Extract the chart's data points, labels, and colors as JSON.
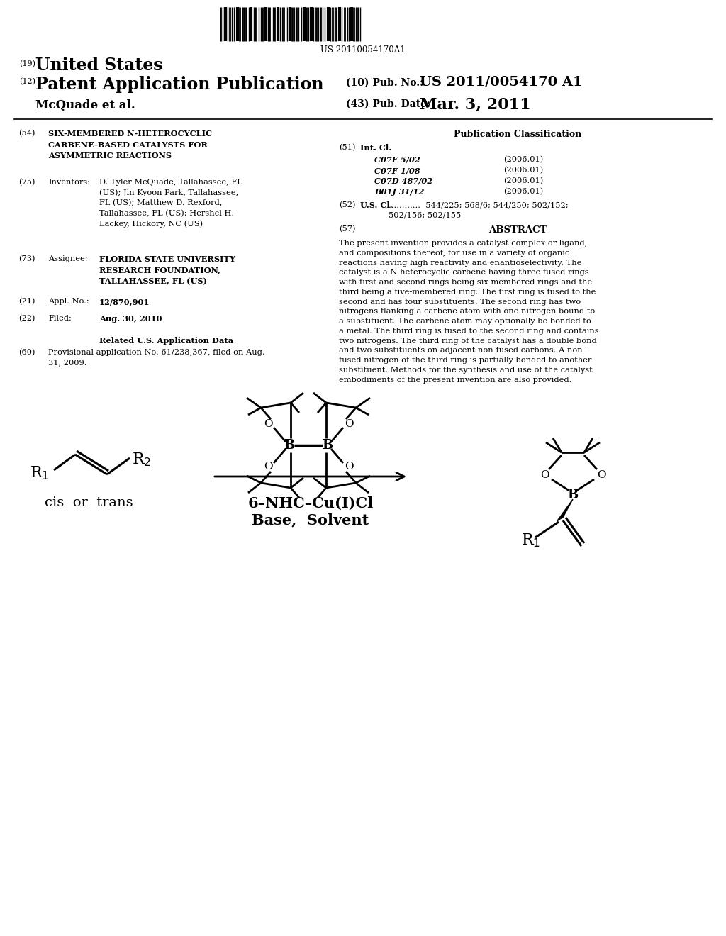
{
  "background_color": "#ffffff",
  "barcode_text": "US 20110054170A1",
  "header_19_text": "United States",
  "header_12_text": "Patent Application Publication",
  "header_10_label": "(10) Pub. No.:",
  "header_10_value": "US 2011/0054170 A1",
  "header_43_label": "(43) Pub. Date:",
  "header_43_value": "Mar. 3, 2011",
  "authors_line": "McQuade et al.",
  "field54_text": "SIX-MEMBERED N-HETEROCYCLIC\nCARBENE-BASED CATALYSTS FOR\nASYMMETRIC REACTIONS",
  "field75_label": "Inventors:",
  "field75_text": "D. Tyler McQuade, Tallahassee, FL\n(US); Jin Kyoon Park, Tallahassee,\nFL (US); Matthew D. Rexford,\nTallahassee, FL (US); Hershel H.\nLackey, Hickory, NC (US)",
  "field73_label": "Assignee:",
  "field73_text": "FLORIDA STATE UNIVERSITY\nRESEARCH FOUNDATION,\nTALLAHASSEE, FL (US)",
  "field21_label": "Appl. No.:",
  "field21_text": "12/870,901",
  "field22_label": "Filed:",
  "field22_text": "Aug. 30, 2010",
  "related_header": "Related U.S. Application Data",
  "field60_text": "Provisional application No. 61/238,367, filed on Aug.\n31, 2009.",
  "pub_class_header": "Publication Classification",
  "field51_label": "Int. Cl.",
  "int_cl_items": [
    [
      "C07F 5/02",
      "(2006.01)"
    ],
    [
      "C07F 1/08",
      "(2006.01)"
    ],
    [
      "C07D 487/02",
      "(2006.01)"
    ],
    [
      "B01J 31/12",
      "(2006.01)"
    ]
  ],
  "field52_label": "U.S. Cl.",
  "field52_text": "............  544/225; 568/6; 544/250; 502/152;\n502/156; 502/155",
  "field57_header": "ABSTRACT",
  "abstract_text": "The present invention provides a catalyst complex or ligand,\nand compositions thereof, for use in a variety of organic\nreactions having high reactivity and enantioselectivity. The\ncatalyst is a N-heterocyclic carbene having three fused rings\nwith first and second rings being six-membered rings and the\nthird being a five-membered ring. The first ring is fused to the\nsecond and has four substituents. The second ring has two\nnitrogens flanking a carbene atom with one nitrogen bound to\na substituent. The carbene atom may optionally be bonded to\na metal. The third ring is fused to the second ring and contains\ntwo nitrogens. The third ring of the catalyst has a double bond\nand two substituents on adjacent non-fused carbons. A non-\nfused nitrogen of the third ring is partially bonded to another\nsubstituent. Methods for the synthesis and use of the catalyst\nembodiments of the present invention are also provided.",
  "chem_label1": "cis  or  trans",
  "chem_label2": "6–NHC–Cu(I)Cl",
  "chem_label3": "Base,  Solvent"
}
